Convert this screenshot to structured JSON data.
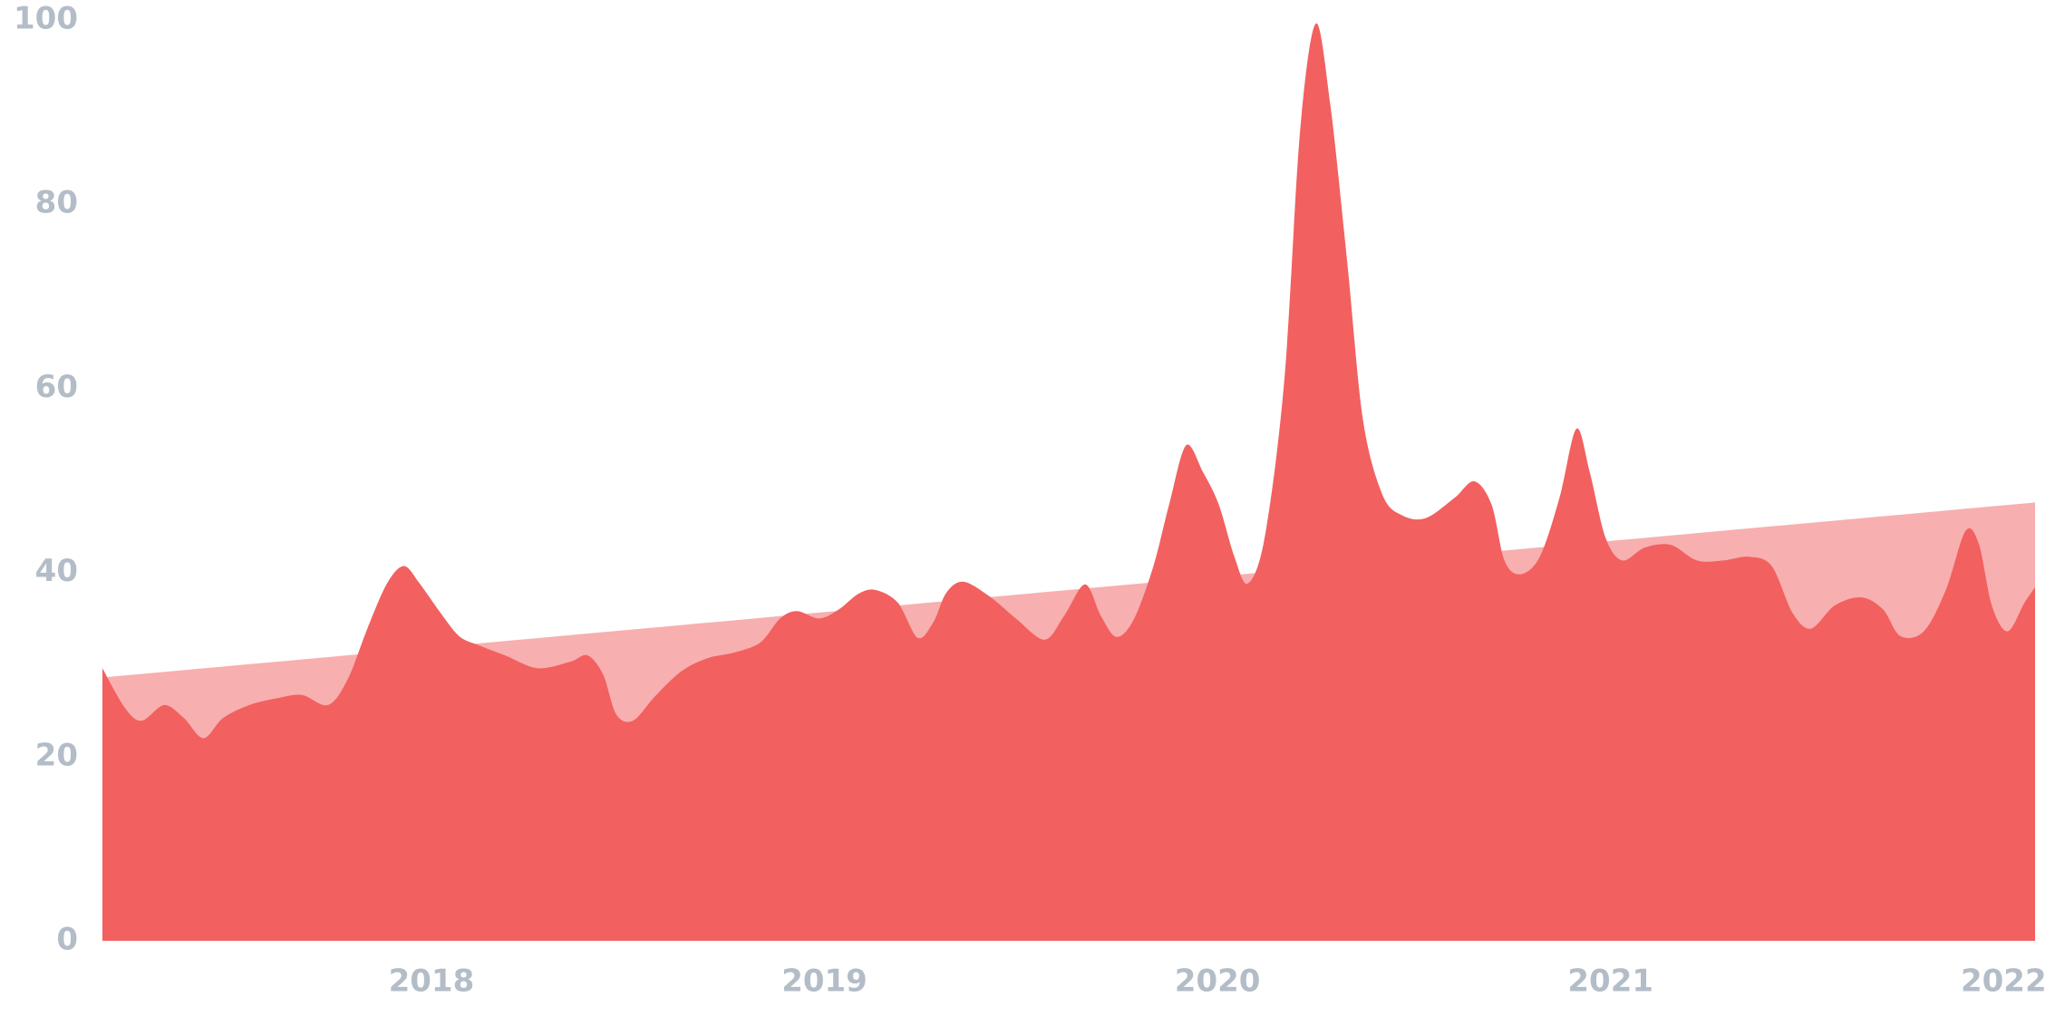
{
  "chart_data": {
    "type": "area",
    "xlim": [
      2017.163,
      2022.08
    ],
    "xticks": [
      2018,
      2019,
      2020,
      2021,
      2022
    ],
    "ylim": [
      0,
      100
    ],
    "yticks": [
      0,
      20,
      40,
      60,
      80,
      100
    ],
    "series": [
      {
        "color": "#f8afaf",
        "x": [
          2017.163,
          2022.08
        ],
        "values": [
          28.6,
          47.6
        ]
      },
      {
        "color": "#f26060",
        "x": [
          2017.163,
          2017.22,
          2017.263,
          2017.32,
          2017.37,
          2017.42,
          2017.47,
          2017.537,
          2017.603,
          2017.67,
          2017.737,
          2017.787,
          2017.837,
          2017.887,
          2017.93,
          2017.97,
          2018.02,
          2018.07,
          2018.12,
          2018.187,
          2018.27,
          2018.353,
          2018.397,
          2018.437,
          2018.47,
          2018.513,
          2018.57,
          2018.637,
          2018.703,
          2018.77,
          2018.837,
          2018.887,
          2018.93,
          2018.987,
          2019.037,
          2019.087,
          2019.13,
          2019.187,
          2019.237,
          2019.277,
          2019.31,
          2019.353,
          2019.42,
          2019.487,
          2019.56,
          2019.61,
          2019.663,
          2019.703,
          2019.743,
          2019.787,
          2019.837,
          2019.877,
          2019.92,
          2019.963,
          2020.003,
          2020.043,
          2020.077,
          2020.12,
          2020.17,
          2020.21,
          2020.25,
          2020.287,
          2020.33,
          2020.37,
          2020.42,
          2020.47,
          2020.53,
          2020.603,
          2020.653,
          2020.697,
          2020.73,
          2020.77,
          2020.82,
          2020.87,
          2020.913,
          2020.947,
          2020.987,
          2021.03,
          2021.087,
          2021.153,
          2021.22,
          2021.287,
          2021.353,
          2021.41,
          2021.463,
          2021.51,
          2021.57,
          2021.637,
          2021.693,
          2021.737,
          2021.797,
          2021.853,
          2021.903,
          2021.937,
          2021.97,
          2022.01,
          2022.053,
          2022.08
        ],
        "values": [
          29.6,
          25.3,
          23.9,
          25.6,
          24.2,
          22.0,
          24.2,
          25.6,
          26.3,
          26.7,
          25.6,
          28.4,
          33.9,
          38.8,
          40.7,
          38.8,
          35.8,
          33.1,
          32.1,
          31.0,
          29.6,
          30.3,
          31.0,
          28.9,
          24.6,
          23.9,
          26.6,
          29.3,
          30.7,
          31.3,
          32.4,
          35.0,
          35.8,
          35.0,
          36.0,
          37.7,
          38.1,
          36.7,
          32.9,
          34.6,
          37.8,
          39.0,
          37.4,
          35.0,
          32.7,
          35.3,
          38.7,
          35.3,
          33.0,
          34.9,
          40.7,
          47.4,
          53.8,
          50.9,
          47.4,
          41.7,
          38.8,
          43.8,
          60.9,
          87.9,
          99.6,
          90.8,
          73.7,
          56.6,
          48.4,
          46.2,
          45.9,
          48.1,
          49.9,
          47.4,
          41.3,
          39.8,
          41.7,
          48.1,
          55.6,
          50.9,
          43.8,
          41.3,
          42.7,
          43.0,
          41.3,
          41.3,
          41.7,
          40.7,
          35.6,
          33.9,
          36.4,
          37.3,
          36.0,
          33.1,
          33.6,
          38.1,
          44.5,
          43.1,
          36.4,
          33.6,
          36.7,
          38.4
        ]
      }
    ]
  }
}
